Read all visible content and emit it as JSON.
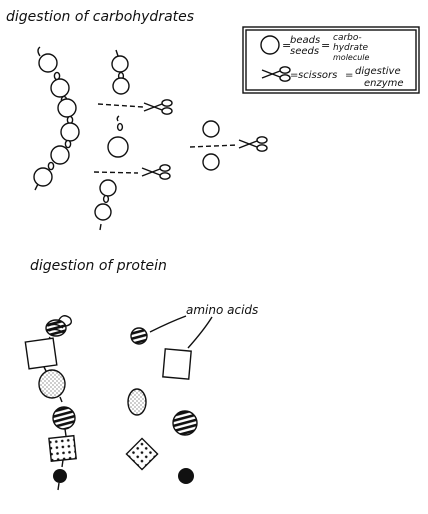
{
  "carbohydrates": {
    "title": "digestion of carbohydrates"
  },
  "legend": {
    "beads_label": "beads",
    "seeds_label": "seeds",
    "equals1": "=",
    "equals2": "=",
    "equals3": "=",
    "carb_line1": "carbo-",
    "carb_line2": "hydrate",
    "carb_line3": "molecule",
    "scissors_label": "scissors",
    "equals4": "=",
    "enzyme_line1": "digestive",
    "enzyme_line2": "enzyme"
  },
  "protein": {
    "title": "digestion of protein",
    "amino_label": "amino acids"
  },
  "icons": [
    "bead-icon",
    "seed-icon",
    "scissors-icon"
  ]
}
